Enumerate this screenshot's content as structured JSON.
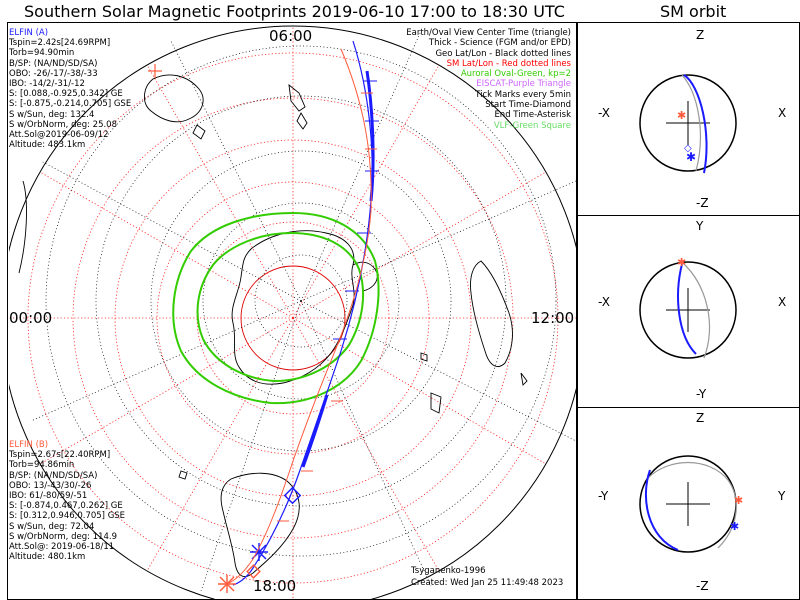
{
  "titles": {
    "main": "Southern Solar Magnetic Footprints 2019-06-10 17:00 to 18:30 UTC",
    "orbit": "SM orbit"
  },
  "clock_labels": {
    "top": "06:00",
    "left": "00:00",
    "right": "12:00",
    "bottom": "18:00"
  },
  "elfin_a": {
    "name": "ELFIN (A)",
    "color": "#1a1aff",
    "lines": [
      "Tspin=2.42s[24.69RPM]",
      "Torb=94.90min",
      "B/SP: (NA/ND/SD/SA)",
      "OBO: -26/-17/-38/-33",
      "IBO: -14/2/-31/-12",
      "S: [0.088,-0.925,0.342] GE",
      "S: [-0.875,-0.214,0.705] GSE",
      "S w/Sun, deg: 132.4",
      "S w/OrbNorm, deg: 25.08",
      "Att.Sol@2019-06-09/12",
      "Altitude: 483.1km"
    ]
  },
  "elfin_b": {
    "name": "ELFIN (B)",
    "color": "#ff5a3c",
    "lines": [
      "Tspin=2.67s[22.40RPM]",
      "Torb=94.86min",
      "B/SP: (NA/ND/SD/SA)",
      "OBO: 13/-43/30/-26",
      "IBO: 61/-80/59/-51",
      "S: [-0.874,0.467,0.262] GE",
      "S: [0.312,0.946,0.705] GSE",
      "S w/Sun, deg: 72.04",
      "S w/OrbNorm, deg: 114.9",
      "Att.Sol@: 2019-06-18/11",
      "Altitude: 480.1km"
    ]
  },
  "legend": [
    {
      "text": "Earth/Oval View Center Time (triangle)",
      "color": "#000000"
    },
    {
      "text": "Thick - Science (FGM and/or EPD)",
      "color": "#000000"
    },
    {
      "text": "Geo Lat/Lon - Black dotted lines",
      "color": "#000000"
    },
    {
      "text": "SM Lat/Lon - Red dotted lines",
      "color": "#ff0000"
    },
    {
      "text": "Auroral Oval-Green, kp=2",
      "color": "#33cc00"
    },
    {
      "text": "EISCAT-Purple Triangle",
      "color": "#cc66ff"
    },
    {
      "text": "Tick Marks every 5min",
      "color": "#000000"
    },
    {
      "text": "Start Time-Diamond",
      "color": "#000000"
    },
    {
      "text": "End Time-Asterisk",
      "color": "#000000"
    },
    {
      "text": "VLF-Green Square",
      "color": "#66dd66"
    }
  ],
  "footer": {
    "author": "Tsyganenko-1996",
    "created": "Created: Wed Jan 25 11:49:48 2023"
  },
  "orbit_panels": [
    {
      "top": "Z",
      "bottom": "-Z",
      "left": "-X",
      "right": "X"
    },
    {
      "top": "Y",
      "bottom": "-Y",
      "left": "-X",
      "right": "X"
    },
    {
      "top": "Z",
      "bottom": "-Z",
      "left": "-Y",
      "right": "Y"
    }
  ],
  "chart_data": [
    {
      "type": "polar-footprint-map",
      "title": "Southern Solar Magnetic Footprints 2019-06-10 17:00 to 18:30 UTC",
      "time_range": [
        "2019-06-10 17:00",
        "2019-06-10 18:30"
      ],
      "clock_labels": [
        "06:00",
        "12:00",
        "18:00",
        "00:00"
      ],
      "tick_interval_min": 5,
      "auroral_oval_kp": 2,
      "series": [
        {
          "name": "ELFIN (A)",
          "color": "#1a1aff"
        },
        {
          "name": "ELFIN (B)",
          "color": "#ff5a3c"
        }
      ]
    },
    {
      "type": "orbit-projection",
      "title": "SM orbit",
      "axes": [
        "-X",
        "X",
        "-Z",
        "Z"
      ]
    },
    {
      "type": "orbit-projection",
      "axes": [
        "-X",
        "X",
        "-Y",
        "Y"
      ]
    },
    {
      "type": "orbit-projection",
      "axes": [
        "-Y",
        "Y",
        "-Z",
        "Z"
      ]
    }
  ]
}
